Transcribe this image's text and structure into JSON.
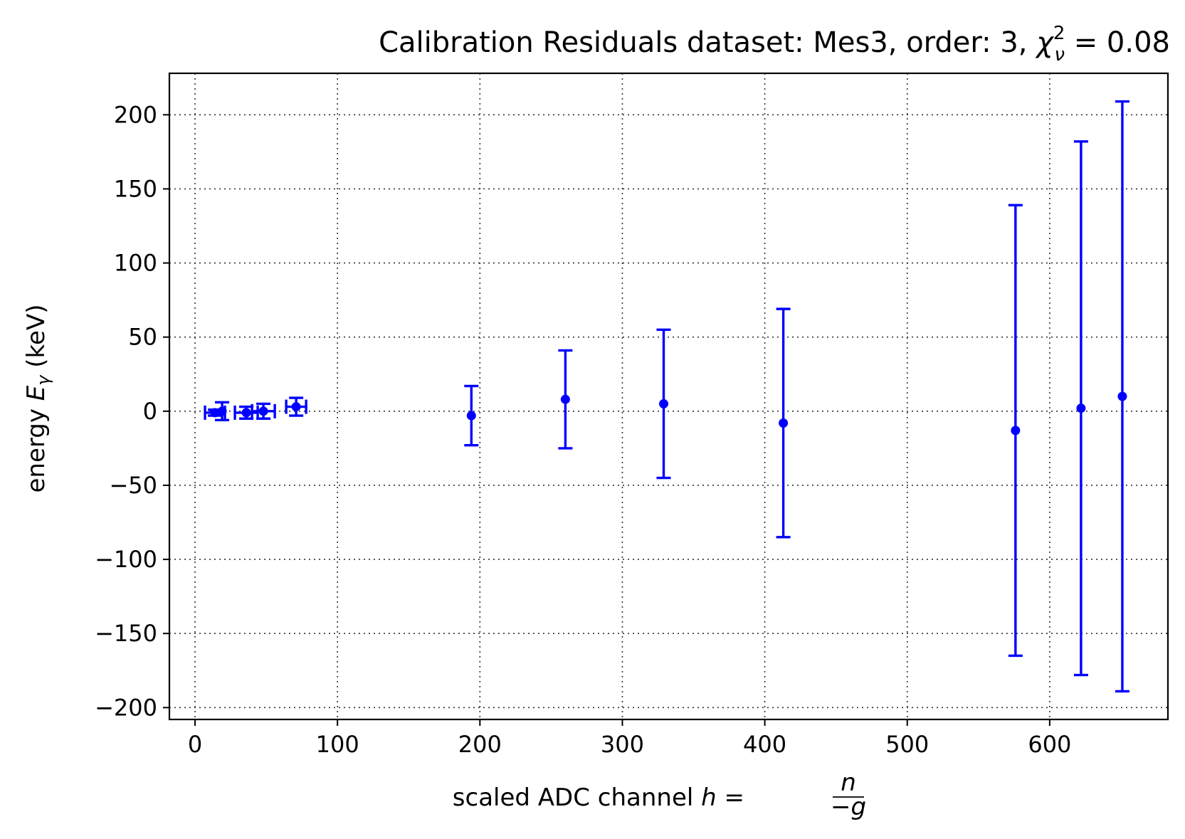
{
  "chart_data": {
    "type": "scatter",
    "title": {
      "prefix": "Calibration Residuals dataset: Mes3, order: 3, ",
      "chi_symbol": "χ",
      "chi_sub": "ν",
      "chi_sup": "2",
      "equals": " =  0.08"
    },
    "xlabel": {
      "prefix": "scaled ADC channel ",
      "var": "h",
      "equals": " = ",
      "frac_num": "n",
      "frac_den": "−g"
    },
    "ylabel": {
      "prefix": "energy ",
      "var": "E",
      "sub": "γ",
      "suffix": " (keV)"
    },
    "xlim": [
      -18,
      683
    ],
    "ylim": [
      -208,
      228
    ],
    "xticks": [
      0,
      100,
      200,
      300,
      400,
      500,
      600
    ],
    "xtick_labels": [
      "0",
      "100",
      "200",
      "300",
      "400",
      "500",
      "600"
    ],
    "yticks": [
      200,
      150,
      100,
      50,
      0,
      -50,
      -100,
      -150,
      -200
    ],
    "ytick_labels": [
      "200",
      "150",
      "100",
      "50",
      "0",
      "−50",
      "−100",
      "−150",
      "−200"
    ],
    "grid": true,
    "color": "#0000ff",
    "points": [
      {
        "x": 14,
        "y": -1,
        "yerr": 2,
        "xerr": 7
      },
      {
        "x": 19,
        "y": 0,
        "yerr": 6,
        "xerr": 0
      },
      {
        "x": 36,
        "y": -1,
        "yerr": 4,
        "xerr": 8
      },
      {
        "x": 48,
        "y": 0,
        "yerr": 5,
        "xerr": 8
      },
      {
        "x": 71,
        "y": 3,
        "yerr": 6,
        "xerr": 7
      },
      {
        "x": 194,
        "y": -3,
        "yerr": 20,
        "xerr": 0
      },
      {
        "x": 260,
        "y": 8,
        "yerr": 33,
        "xerr": 0
      },
      {
        "x": 329,
        "y": 5,
        "yerr": 50,
        "xerr": 0
      },
      {
        "x": 413,
        "y": -8,
        "yerr": 77,
        "xerr": 0
      },
      {
        "x": 576,
        "y": -13,
        "yerr": 152,
        "xerr": 0
      },
      {
        "x": 622,
        "y": 2,
        "yerr": 180,
        "xerr": 0
      },
      {
        "x": 651,
        "y": 10,
        "yerr": 199,
        "xerr": 0
      }
    ]
  }
}
